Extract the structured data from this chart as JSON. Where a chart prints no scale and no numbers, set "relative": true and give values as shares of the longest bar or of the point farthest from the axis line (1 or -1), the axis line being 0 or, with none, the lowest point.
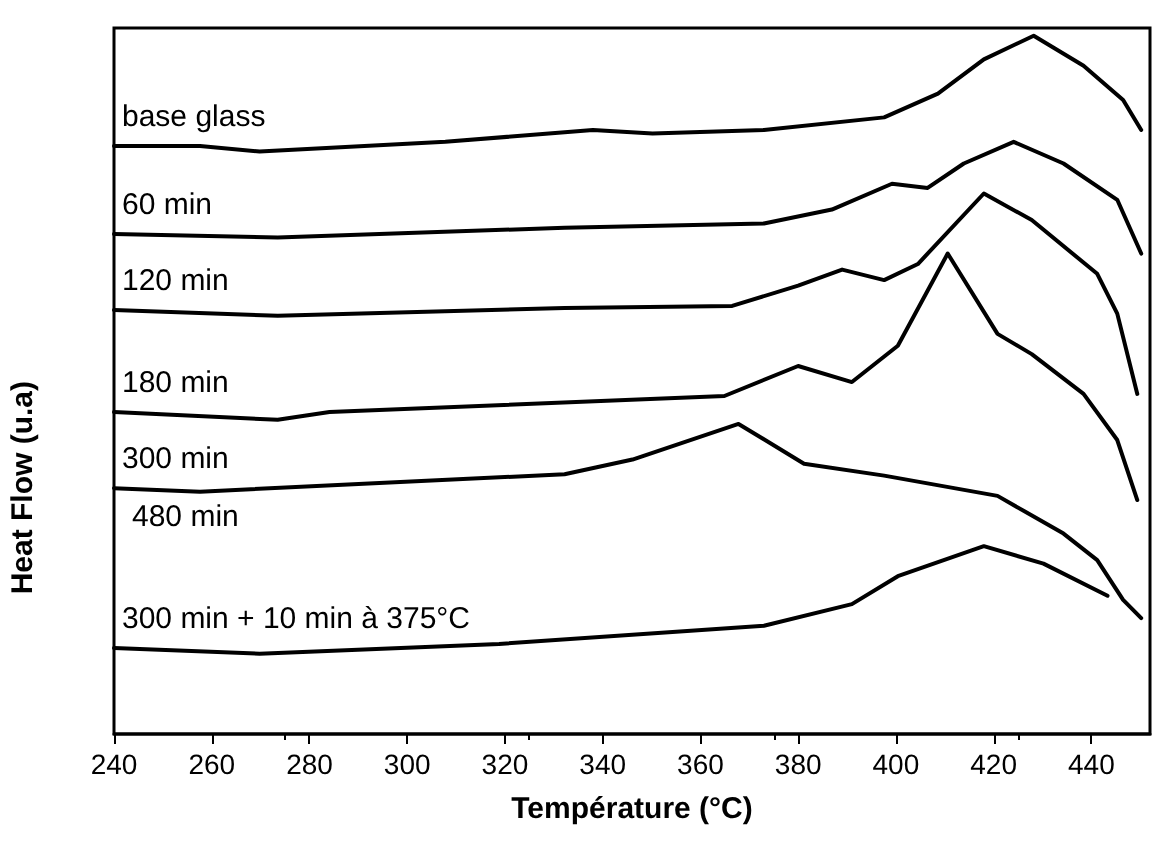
{
  "chart_data": {
    "type": "line",
    "relative": true,
    "xlabel": "Température (°C)",
    "ylabel": "Heat Flow (u.a)",
    "xlim": [
      240,
      452
    ],
    "xticks": [
      240,
      260,
      280,
      300,
      320,
      340,
      360,
      380,
      400,
      420,
      440
    ],
    "grid": false,
    "legend": false,
    "marker": "none",
    "line_style": "solid",
    "annotations": [
      "480 min"
    ],
    "series": [
      {
        "name": "base glass",
        "color": "#000000",
        "x": [
          240,
          257.6,
          269.8,
          307.8,
          338,
          350.2,
          373,
          397.6,
          408.6,
          418,
          428.2,
          438.4,
          446.5,
          450.2
        ],
        "values": [
          0.842,
          0.842,
          0.834,
          0.848,
          0.865,
          0.86,
          0.865,
          0.883,
          0.917,
          0.966,
          1.0,
          0.957,
          0.908,
          0.865
        ]
      },
      {
        "name": "60 min",
        "color": "#000000",
        "x": [
          240,
          273.5,
          332.2,
          373,
          386.9,
          399.2,
          406.5,
          413.9,
          424.1,
          434.3,
          445.3,
          450.2
        ],
        "values": [
          0.716,
          0.711,
          0.725,
          0.731,
          0.751,
          0.788,
          0.782,
          0.817,
          0.848,
          0.817,
          0.765,
          0.688
        ]
      },
      {
        "name": "120 min",
        "color": "#000000",
        "x": [
          240,
          273.5,
          332.2,
          366.5,
          380,
          389,
          397.6,
          404.5,
          418,
          427.8,
          441.2,
          445.3,
          449.4
        ],
        "values": [
          0.607,
          0.599,
          0.61,
          0.613,
          0.642,
          0.665,
          0.65,
          0.673,
          0.774,
          0.736,
          0.659,
          0.602,
          0.487
        ]
      },
      {
        "name": "180 min",
        "color": "#000000",
        "x": [
          240,
          273.5,
          284.1,
          364.9,
          380,
          391,
          400.4,
          410.6,
          420.8,
          427.8,
          438.4,
          445.3,
          449.4
        ],
        "values": [
          0.461,
          0.45,
          0.461,
          0.484,
          0.527,
          0.504,
          0.556,
          0.688,
          0.573,
          0.544,
          0.487,
          0.421,
          0.335
        ]
      },
      {
        "name": "300 min",
        "color": "#000000",
        "x": [
          240,
          257.6,
          332.2,
          346.1,
          367.8,
          381.2,
          397.6,
          420.8,
          434.3,
          441.2,
          446.5,
          450.2
        ],
        "values": [
          0.352,
          0.347,
          0.372,
          0.393,
          0.444,
          0.387,
          0.37,
          0.341,
          0.287,
          0.249,
          0.192,
          0.166
        ]
      },
      {
        "name": "300 min + 10 min à 375°C",
        "color": "#000000",
        "x": [
          240,
          269.8,
          318.8,
          373,
          391,
          400.4,
          418,
          430.2,
          443.3
        ],
        "values": [
          0.123,
          0.115,
          0.129,
          0.155,
          0.186,
          0.226,
          0.269,
          0.244,
          0.198
        ]
      }
    ]
  }
}
